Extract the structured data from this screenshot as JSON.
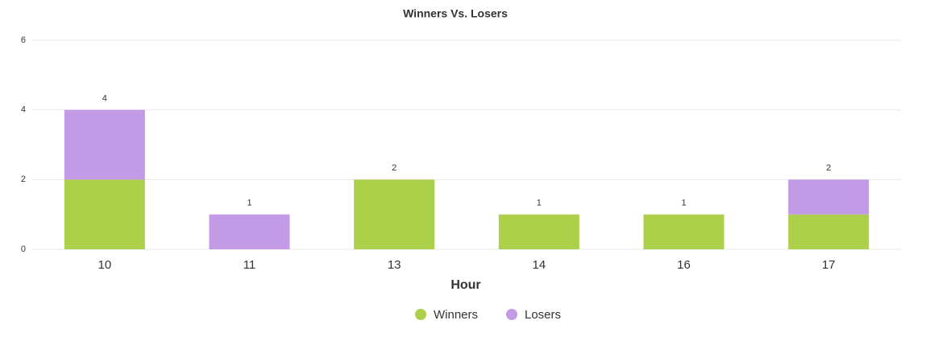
{
  "chart_data": {
    "type": "stacked_bar",
    "title": "Winners Vs. Losers",
    "x_label": "Hour",
    "categories": [
      "10",
      "11",
      "13",
      "14",
      "16",
      "17"
    ],
    "series": [
      {
        "name": "Winners",
        "color": "#add04a",
        "values": [
          2,
          0,
          2,
          1,
          1,
          1
        ]
      },
      {
        "name": "Losers",
        "color": "#c39ae6",
        "values": [
          2,
          1,
          0,
          0,
          0,
          1
        ]
      }
    ],
    "totals": [
      4,
      1,
      2,
      1,
      1,
      2
    ],
    "ylim": [
      0,
      6
    ],
    "yticks": [
      0,
      2,
      4,
      6
    ],
    "grid": true
  }
}
